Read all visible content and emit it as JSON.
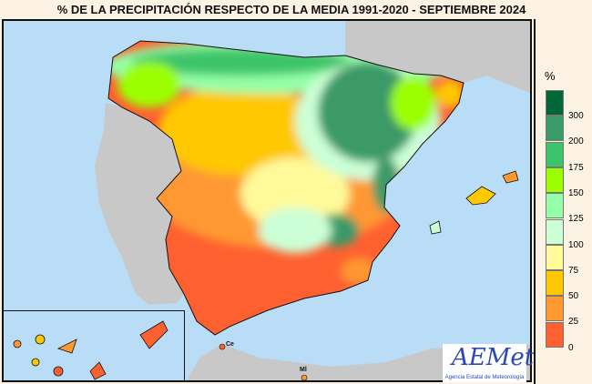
{
  "title": "% DE LA PRECIPITACIÓN RESPECTO DE LA MEDIA 1991-2020 - SEPTIEMBRE 2024",
  "legend": {
    "unit": "%",
    "classes": [
      {
        "label": "300",
        "color": "#006837"
      },
      {
        "label": "200",
        "color": "#3a9a68"
      },
      {
        "label": "175",
        "color": "#3cc46a"
      },
      {
        "label": "150",
        "color": "#9cff00"
      },
      {
        "label": "125",
        "color": "#94ffa8"
      },
      {
        "label": "100",
        "color": "#ccffd6"
      },
      {
        "label": "75",
        "color": "#fff99a"
      },
      {
        "label": "50",
        "color": "#ffc800"
      },
      {
        "label": "25",
        "color": "#ff9830"
      },
      {
        "label": "0",
        "color": "#ff6030"
      }
    ]
  },
  "map_labels": {
    "ceuta": "Ce",
    "melilla": "Ml"
  },
  "logo": {
    "name": "AEMet",
    "subtitle": "Agencia Estatal de Meteorología"
  },
  "colors": {
    "sea": "#b9dcf7",
    "neighbour_land": "#c8c8c8"
  }
}
